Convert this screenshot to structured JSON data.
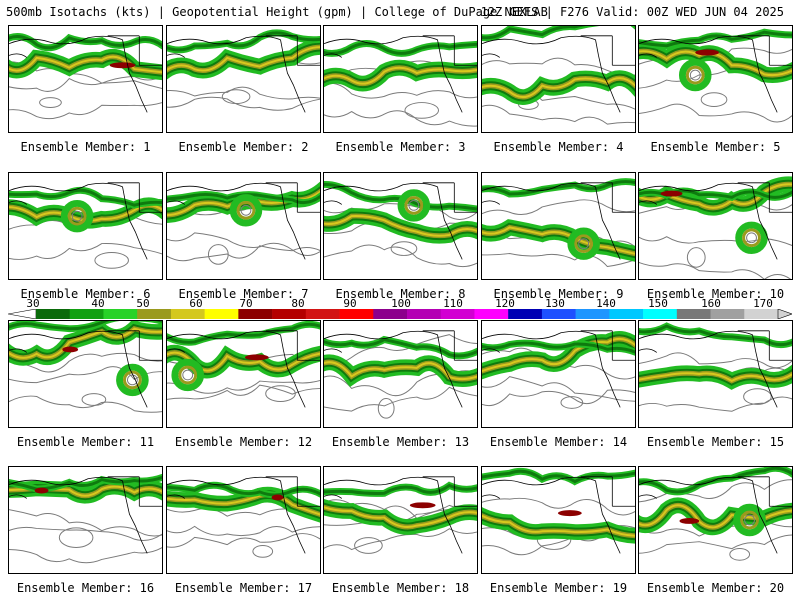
{
  "header": {
    "left": "500mb Isotachs (kts) | Geopotential Height (gpm) | College of DuPage NEXLAB",
    "right": "12Z GEFS | F276 Valid: 00Z WED JUN 04 2025"
  },
  "panels": [
    {
      "label": "Ensemble Member: 1"
    },
    {
      "label": "Ensemble Member: 2"
    },
    {
      "label": "Ensemble Member: 3"
    },
    {
      "label": "Ensemble Member: 4"
    },
    {
      "label": "Ensemble Member: 5"
    },
    {
      "label": "Ensemble Member: 6"
    },
    {
      "label": "Ensemble Member: 7"
    },
    {
      "label": "Ensemble Member: 8"
    },
    {
      "label": "Ensemble Member: 9"
    },
    {
      "label": "Ensemble Member: 10"
    },
    {
      "label": "Ensemble Member: 11"
    },
    {
      "label": "Ensemble Member: 12"
    },
    {
      "label": "Ensemble Member: 13"
    },
    {
      "label": "Ensemble Member: 14"
    },
    {
      "label": "Ensemble Member: 15"
    },
    {
      "label": "Ensemble Member: 16"
    },
    {
      "label": "Ensemble Member: 17"
    },
    {
      "label": "Ensemble Member: 18"
    },
    {
      "label": "Ensemble Member: 19"
    },
    {
      "label": "Ensemble Member: 20"
    }
  ],
  "colorbar": {
    "labels": [
      "30",
      "40",
      "50",
      "60",
      "70",
      "80",
      "90",
      "100",
      "110",
      "120",
      "130",
      "140",
      "150",
      "160",
      "170"
    ],
    "colors": [
      "#0a6a0a",
      "#12a012",
      "#28d228",
      "#9a9a1e",
      "#d4c81e",
      "#ffff00",
      "#8c0000",
      "#b40000",
      "#d21414",
      "#ff0000",
      "#8c008c",
      "#b400b4",
      "#d200d2",
      "#ff00ff",
      "#0000b4",
      "#1e50ff",
      "#1e96ff",
      "#00c8ff",
      "#00ffff",
      "#787878",
      "#a0a0a0",
      "#d2d2d2"
    ]
  },
  "map_colors": {
    "coast": "#000000",
    "height_contour": "#7a7a7a",
    "jet_green": "#22bb22",
    "jet_dark_green": "#0e7a0e",
    "jet_olive": "#9a9a1e",
    "jet_yellow": "#d8c81e",
    "jet_core": "#8c0000"
  }
}
